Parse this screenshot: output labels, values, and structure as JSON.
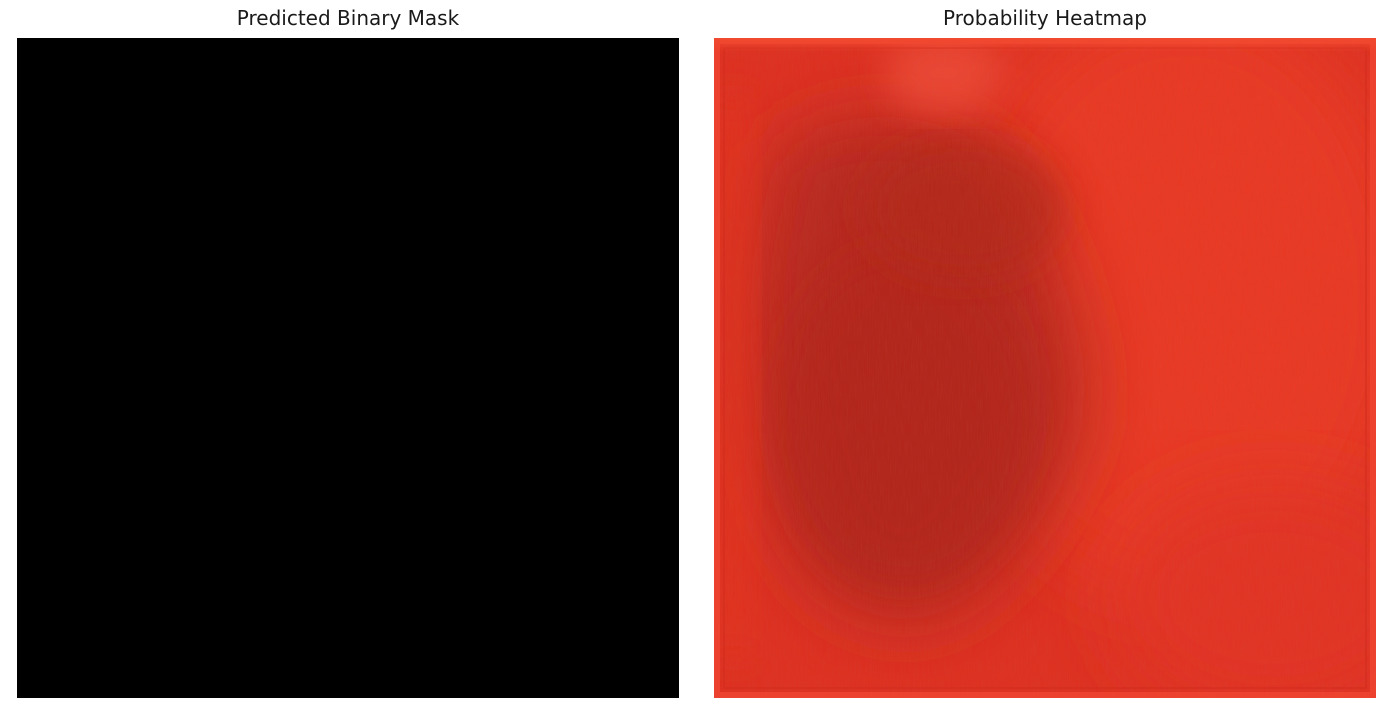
{
  "panels": {
    "mask": {
      "title": "Predicted Binary Mask",
      "fill_color": "#000000"
    },
    "heatmap": {
      "title": "Probability Heatmap",
      "base_color": "#e0301f",
      "dark_region_color": "#b8251a",
      "light_region_color": "#ee3a26"
    }
  }
}
